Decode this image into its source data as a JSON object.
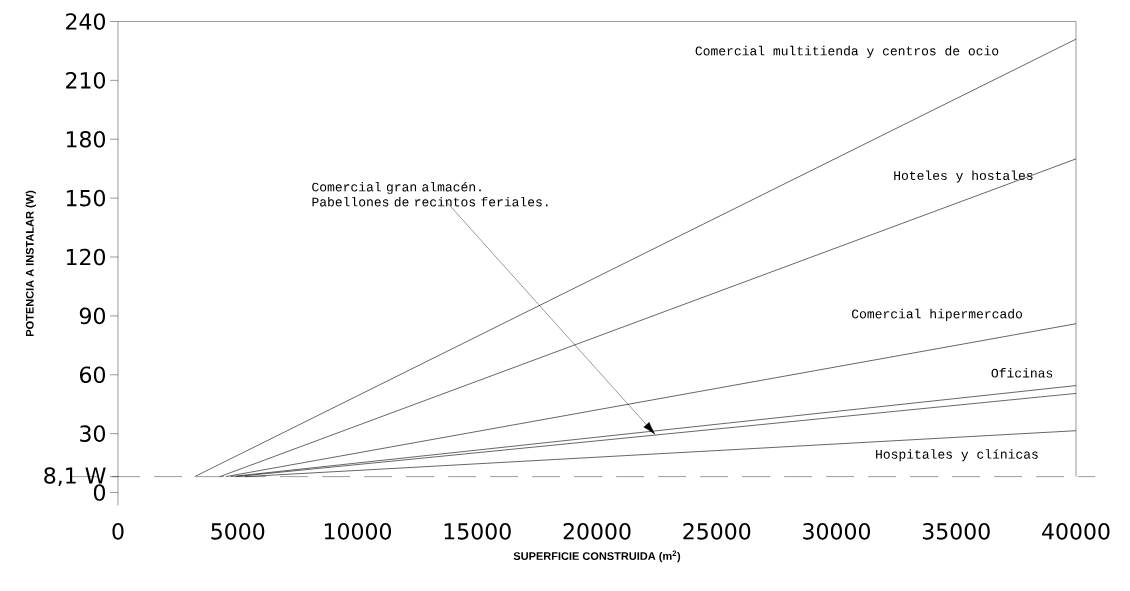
{
  "chart_data": {
    "type": "line",
    "xlabel": "SUPERFICIE CONSTRUIDA (m$^{2}$)",
    "ylabel": "POTENCIA A INSTALAR (W)",
    "xlim": [
      0,
      40000
    ],
    "ylim": [
      -6.6,
      240
    ],
    "xticks": [
      0,
      5000,
      10000,
      15000,
      20000,
      25000,
      30000,
      35000,
      40000
    ],
    "yticks": [
      0,
      {
        "value": 8.1,
        "label": "8,1 W"
      },
      30,
      60,
      90,
      120,
      150,
      180,
      210,
      240
    ],
    "series": [
      {
        "name": "Comercial multitienda y centros de ocio",
        "color": "#000000",
        "x": [
          3200,
          40000
        ],
        "values": [
          8.1,
          231
        ]
      },
      {
        "name": "Hoteles y hostales",
        "color": "#000000",
        "x": [
          4250,
          40000
        ],
        "values": [
          8.1,
          170
        ]
      },
      {
        "name": "Comercial hipermercado",
        "color": "#000000",
        "x": [
          4500,
          40000
        ],
        "values": [
          8.1,
          86
        ]
      },
      {
        "name": "Oficinas",
        "color": "#000000",
        "x": [
          4700,
          40000
        ],
        "values": [
          8.1,
          54.5
        ]
      },
      {
        "name": "Comercial gran almacén. Pabellones de recintos feriales.",
        "color": "#000000",
        "x": [
          4900,
          40000
        ],
        "values": [
          8.1,
          50.5
        ]
      },
      {
        "name": "Hospitales y clínicas",
        "color": "#000000",
        "x": [
          5300,
          40000
        ],
        "values": [
          8.1,
          31.5
        ]
      }
    ],
    "ref_lines": [
      {
        "axis": "y",
        "value": 8.1,
        "line_style": "dashed"
      }
    ]
  }
}
